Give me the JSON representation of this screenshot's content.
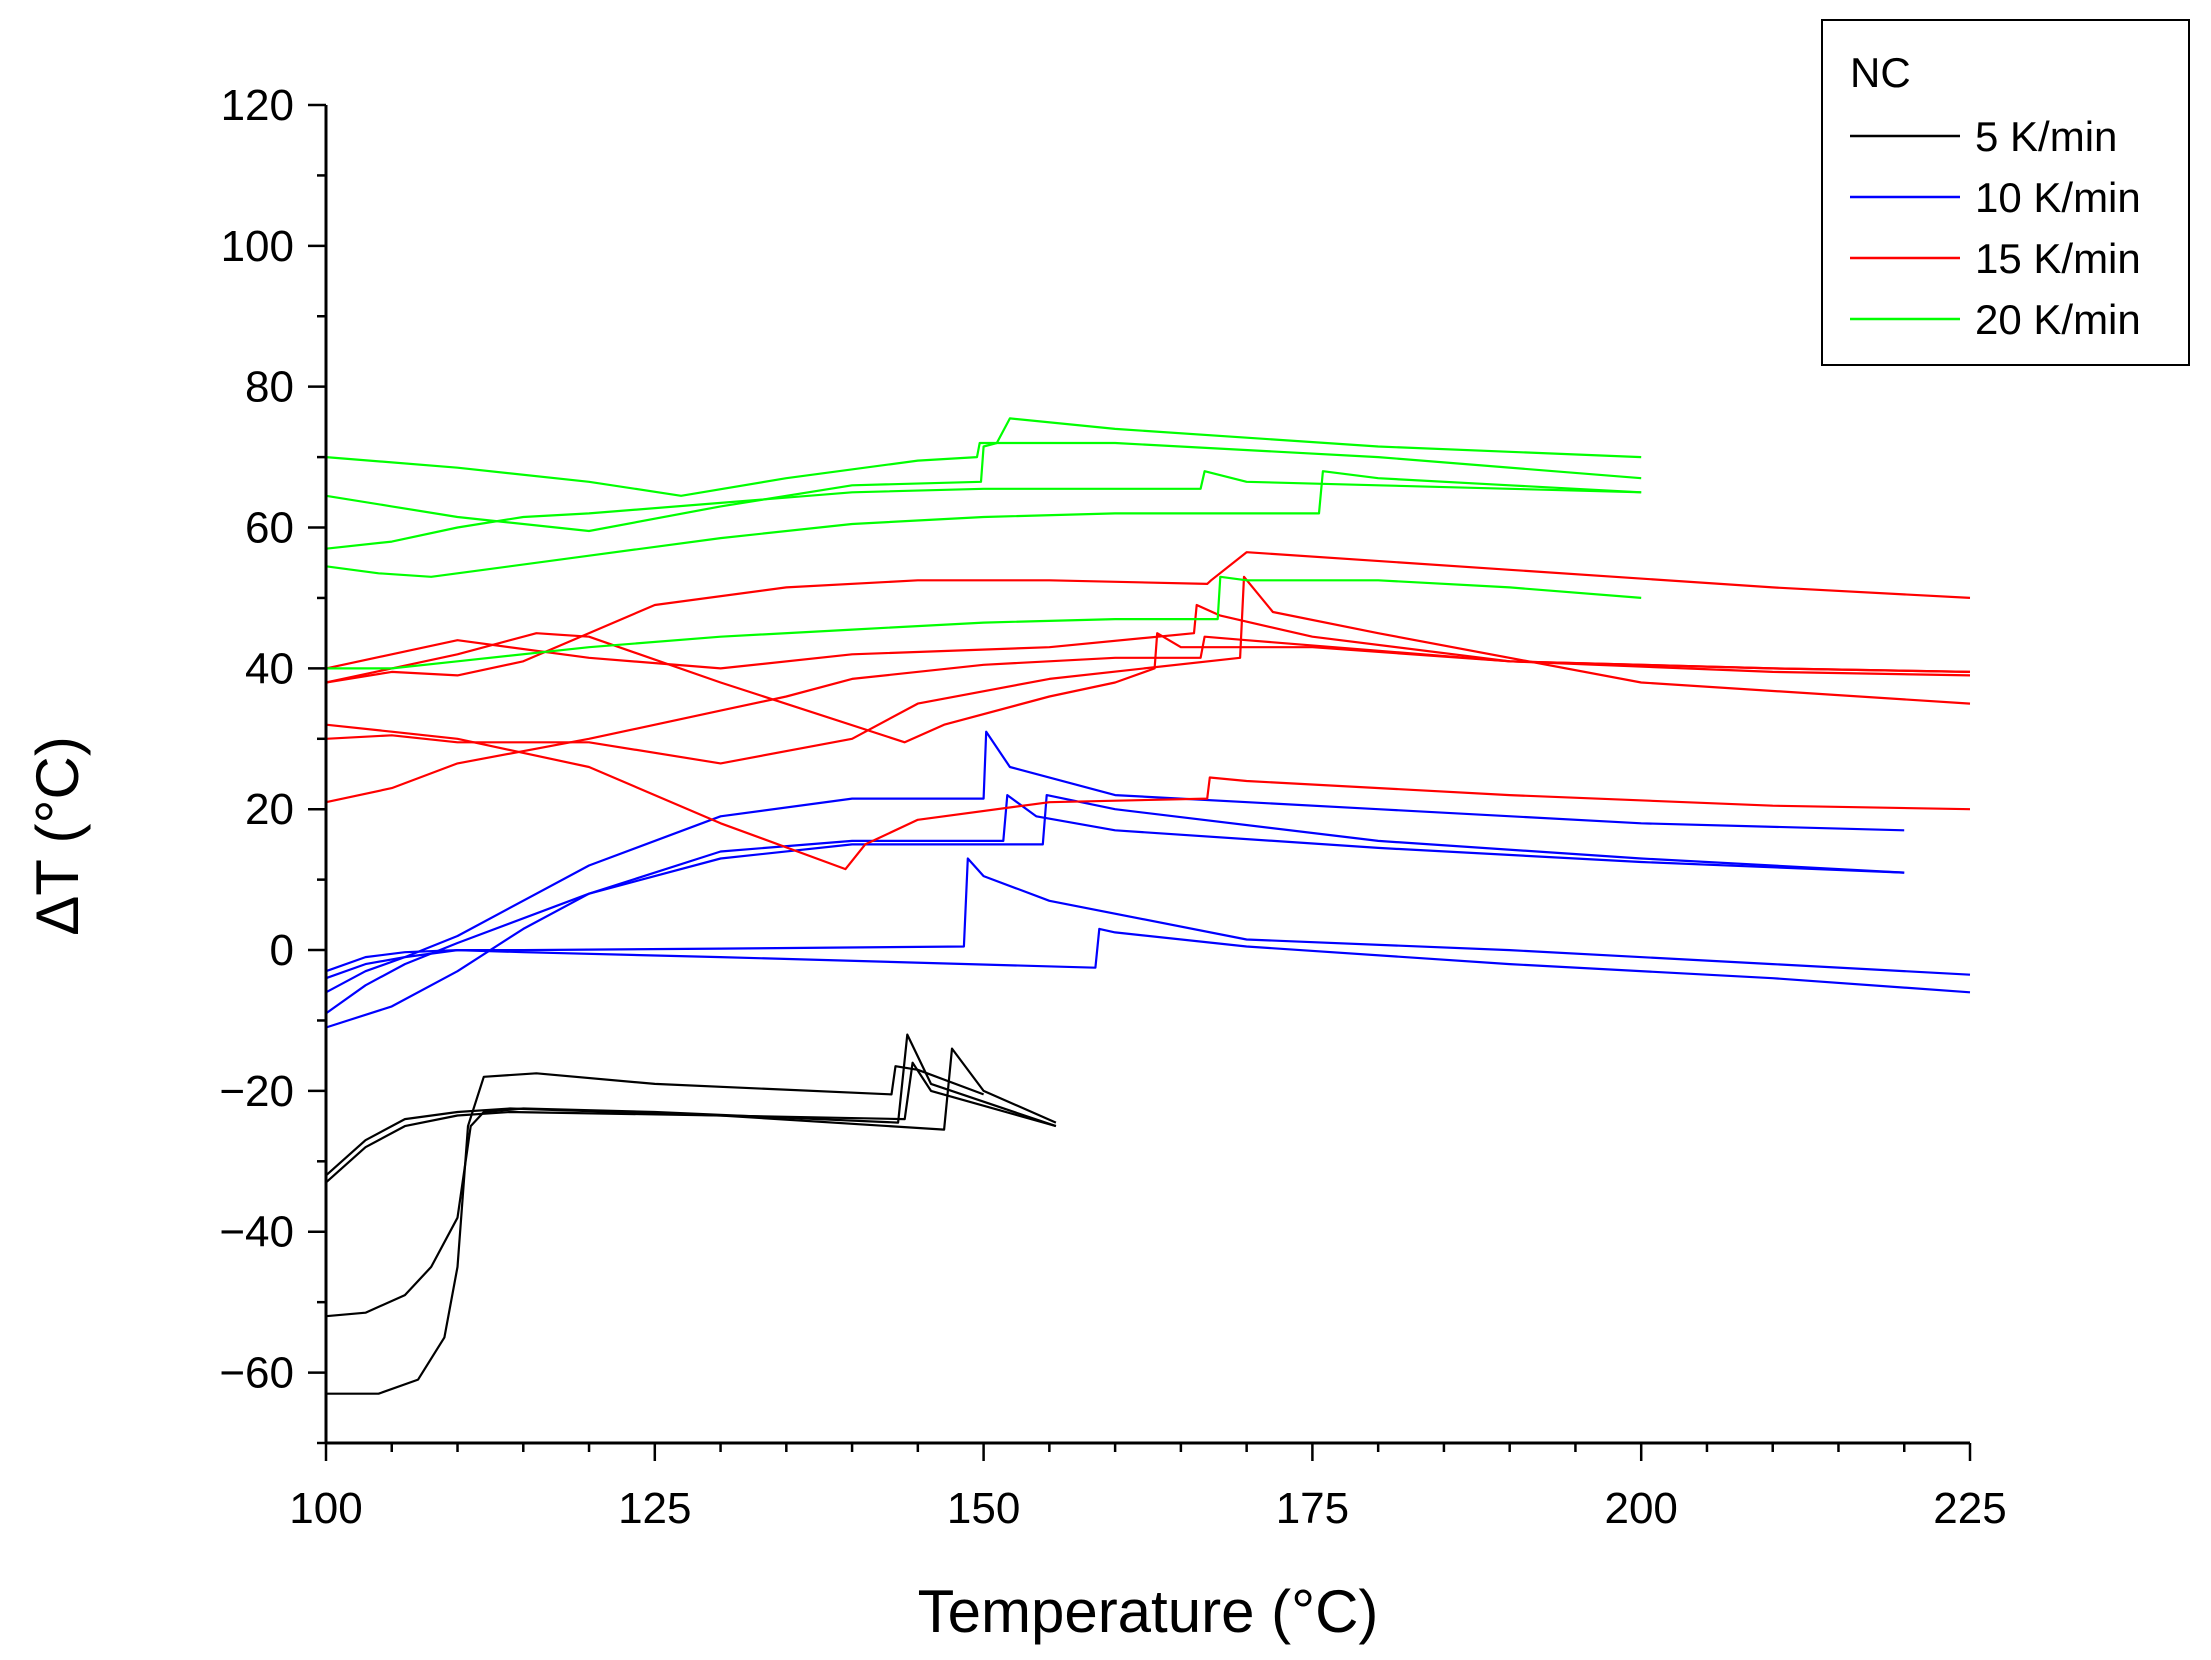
{
  "chart_data": {
    "type": "line",
    "title": "",
    "xlabel": "Temperature (°C)",
    "ylabel": "ΔT (°C)",
    "xlim": [
      100,
      225
    ],
    "ylim": [
      -70,
      120
    ],
    "x_ticks": [
      100,
      125,
      150,
      175,
      200,
      225
    ],
    "y_ticks": [
      -60,
      -40,
      -20,
      0,
      20,
      40,
      60,
      80,
      100,
      120
    ],
    "x_tick_labels": [
      "100",
      "125",
      "150",
      "175",
      "200",
      "225"
    ],
    "y_tick_labels": [
      "−60",
      "−40",
      "−20",
      "0",
      "20",
      "40",
      "60",
      "80",
      "100",
      "120"
    ],
    "legend": {
      "title": "NC",
      "placement": "top-right",
      "entries": [
        {
          "label": "5 K/min",
          "color": "#000000"
        },
        {
          "label": "10 K/min",
          "color": "#0000ff"
        },
        {
          "label": "15 K/min",
          "color": "#ff0000"
        },
        {
          "label": "20 K/min",
          "color": "#00ff00"
        }
      ]
    },
    "series": [
      {
        "name": "5 K/min",
        "color": "#000000",
        "x": [
          100,
          103,
          106,
          110,
          114,
          130,
          144,
          144.6,
          146,
          155.5
        ],
        "y": [
          -33,
          -28,
          -25,
          -23.5,
          -23,
          -23.5,
          -24,
          -16,
          -20,
          -25
        ]
      },
      {
        "name": "5 K/min",
        "color": "#000000",
        "x": [
          100,
          103,
          106,
          110,
          114,
          130,
          147,
          147.6,
          150,
          155.5
        ],
        "y": [
          -32,
          -27,
          -24,
          -23,
          -22.5,
          -23.5,
          -25.5,
          -14,
          -20,
          -24.5
        ]
      },
      {
        "name": "5 K/min",
        "color": "#000000",
        "x": [
          100,
          103,
          106,
          108,
          110,
          111,
          112,
          115,
          125,
          143.5,
          144.2,
          146,
          155.5
        ],
        "y": [
          -52,
          -51.5,
          -49,
          -45,
          -38,
          -25,
          -23,
          -22.5,
          -23,
          -24.5,
          -12,
          -19,
          -25
        ]
      },
      {
        "name": "5 K/min",
        "color": "#000000",
        "x": [
          100,
          104,
          107,
          109,
          110,
          110.8,
          112,
          116,
          125,
          143,
          143.3,
          145,
          150
        ],
        "y": [
          -63,
          -63,
          -61,
          -55,
          -45,
          -25,
          -18,
          -17.5,
          -19,
          -20.5,
          -16.5,
          -17,
          -20.5
        ]
      },
      {
        "name": "10 K/min",
        "color": "#0000ff",
        "x": [
          100,
          103,
          106,
          110,
          120,
          130,
          140,
          150,
          150.2,
          152,
          160,
          180,
          200,
          220
        ],
        "y": [
          -4,
          -2,
          -1,
          2,
          12,
          19,
          21.5,
          21.5,
          31,
          26,
          22,
          20,
          18,
          17
        ]
      },
      {
        "name": "10 K/min",
        "color": "#0000ff",
        "x": [
          100,
          103,
          106,
          110,
          120,
          130,
          140,
          151.5,
          151.8,
          154,
          160,
          180,
          200,
          220
        ],
        "y": [
          -9,
          -5,
          -2,
          1,
          8,
          14,
          15.5,
          15.5,
          22,
          19,
          17,
          14.5,
          12.5,
          11
        ]
      },
      {
        "name": "10 K/min",
        "color": "#0000ff",
        "x": [
          100,
          105,
          110,
          115,
          120,
          130,
          140,
          154.5,
          154.8,
          160,
          180,
          200,
          220
        ],
        "y": [
          -11,
          -8,
          -3,
          3,
          8,
          13,
          15,
          15,
          22,
          20,
          15.5,
          13,
          11
        ]
      },
      {
        "name": "10 K/min",
        "color": "#0000ff",
        "x": [
          100,
          103,
          106,
          110,
          115,
          130,
          148.5,
          148.8,
          150,
          155,
          170,
          190,
          210,
          225
        ],
        "y": [
          -6,
          -3,
          -1,
          0,
          0,
          0.2,
          0.5,
          13,
          10.5,
          7,
          1.5,
          0,
          -2,
          -3.5
        ]
      },
      {
        "name": "10 K/min",
        "color": "#0000ff",
        "x": [
          100,
          103,
          106,
          110,
          115,
          130,
          158.5,
          158.8,
          160,
          170,
          190,
          210,
          225
        ],
        "y": [
          -3,
          -1,
          -0.3,
          0,
          -0.3,
          -1,
          -2.5,
          3,
          2.5,
          0.5,
          -2,
          -4,
          -6
        ]
      },
      {
        "name": "15 K/min",
        "color": "#ff0000",
        "x": [
          100,
          105,
          110,
          115,
          125,
          135,
          145,
          155,
          167,
          167.3,
          170,
          190,
          210,
          225
        ],
        "y": [
          38,
          39.5,
          39,
          41,
          49,
          51.5,
          52.5,
          52.5,
          52,
          52.5,
          56.5,
          54,
          51.5,
          50
        ]
      },
      {
        "name": "15 K/min",
        "color": "#ff0000",
        "x": [
          100,
          105,
          110,
          120,
          130,
          140,
          155,
          166,
          166.2,
          168,
          175,
          190,
          210,
          225
        ],
        "y": [
          40,
          42,
          44,
          41.5,
          40,
          42,
          43,
          45,
          49,
          47.5,
          44.5,
          41,
          40,
          39.5
        ]
      },
      {
        "name": "15 K/min",
        "color": "#ff0000",
        "x": [
          100,
          105,
          110,
          116,
          120,
          130,
          144,
          147,
          155,
          160,
          163,
          163.2,
          165,
          175,
          190,
          210,
          225
        ],
        "y": [
          38,
          40,
          42,
          45,
          44.5,
          38,
          29.5,
          32,
          36,
          38,
          40,
          45,
          43,
          43,
          41,
          39.5,
          39
        ]
      },
      {
        "name": "15 K/min",
        "color": "#ff0000",
        "x": [
          100,
          105,
          110,
          120,
          130,
          140,
          145,
          155,
          169.5,
          169.8,
          172,
          180,
          200,
          225
        ],
        "y": [
          30,
          30.5,
          29.5,
          29.5,
          26.5,
          30,
          35,
          38.5,
          41.5,
          53,
          48,
          45,
          38,
          35
        ]
      },
      {
        "name": "15 K/min",
        "color": "#ff0000",
        "x": [
          100,
          105,
          110,
          120,
          130,
          135,
          140,
          150,
          160,
          166.5,
          166.8,
          170,
          190,
          210,
          225
        ],
        "y": [
          21,
          23,
          26.5,
          30,
          34,
          36,
          38.5,
          40.5,
          41.5,
          41.5,
          44.5,
          44,
          41,
          40,
          39.5
        ]
      },
      {
        "name": "15 K/min",
        "color": "#ff0000",
        "x": [
          100,
          105,
          110,
          120,
          130,
          139.5,
          141,
          145,
          155,
          167,
          167.2,
          170,
          190,
          210,
          225
        ],
        "y": [
          32,
          31,
          30,
          26,
          18,
          11.5,
          15,
          18.5,
          21,
          21.5,
          24.5,
          24,
          22,
          20.5,
          20
        ]
      },
      {
        "name": "20 K/min",
        "color": "#00ff00",
        "x": [
          100,
          110,
          120,
          127,
          135,
          145,
          149.5,
          149.7,
          151,
          152,
          160,
          180,
          200
        ],
        "y": [
          70,
          68.5,
          66.5,
          64.5,
          67,
          69.5,
          70,
          72,
          72,
          75.5,
          74,
          71.5,
          70
        ]
      },
      {
        "name": "20 K/min",
        "color": "#00ff00",
        "x": [
          100,
          105,
          110,
          120,
          130,
          140,
          149.8,
          150,
          151,
          160,
          180,
          200
        ],
        "y": [
          64.5,
          63,
          61.5,
          59.5,
          63,
          66,
          66.5,
          71.5,
          72,
          72,
          70,
          67
        ]
      },
      {
        "name": "20 K/min",
        "color": "#00ff00",
        "x": [
          100,
          105,
          110,
          115,
          120,
          130,
          140,
          150,
          160,
          166.5,
          166.8,
          170,
          180,
          190,
          200
        ],
        "y": [
          57,
          58,
          60,
          61.5,
          62,
          63.5,
          65,
          65.5,
          65.5,
          65.5,
          68,
          66.5,
          66,
          65.5,
          65
        ]
      },
      {
        "name": "20 K/min",
        "color": "#00ff00",
        "x": [
          100,
          104,
          108,
          112,
          120,
          130,
          140,
          150,
          160,
          175.5,
          175.8,
          180,
          190,
          200
        ],
        "y": [
          54.5,
          53.5,
          53,
          54,
          56,
          58.5,
          60.5,
          61.5,
          62,
          62,
          68,
          67,
          66,
          65
        ]
      },
      {
        "name": "20 K/min",
        "color": "#00ff00",
        "x": [
          100,
          105,
          110,
          120,
          130,
          140,
          150,
          160,
          167.8,
          168,
          170,
          180,
          190,
          200
        ],
        "y": [
          40,
          40,
          41,
          43,
          44.5,
          45.5,
          46.5,
          47,
          47,
          53,
          52.5,
          52.5,
          51.5,
          50
        ]
      }
    ]
  }
}
